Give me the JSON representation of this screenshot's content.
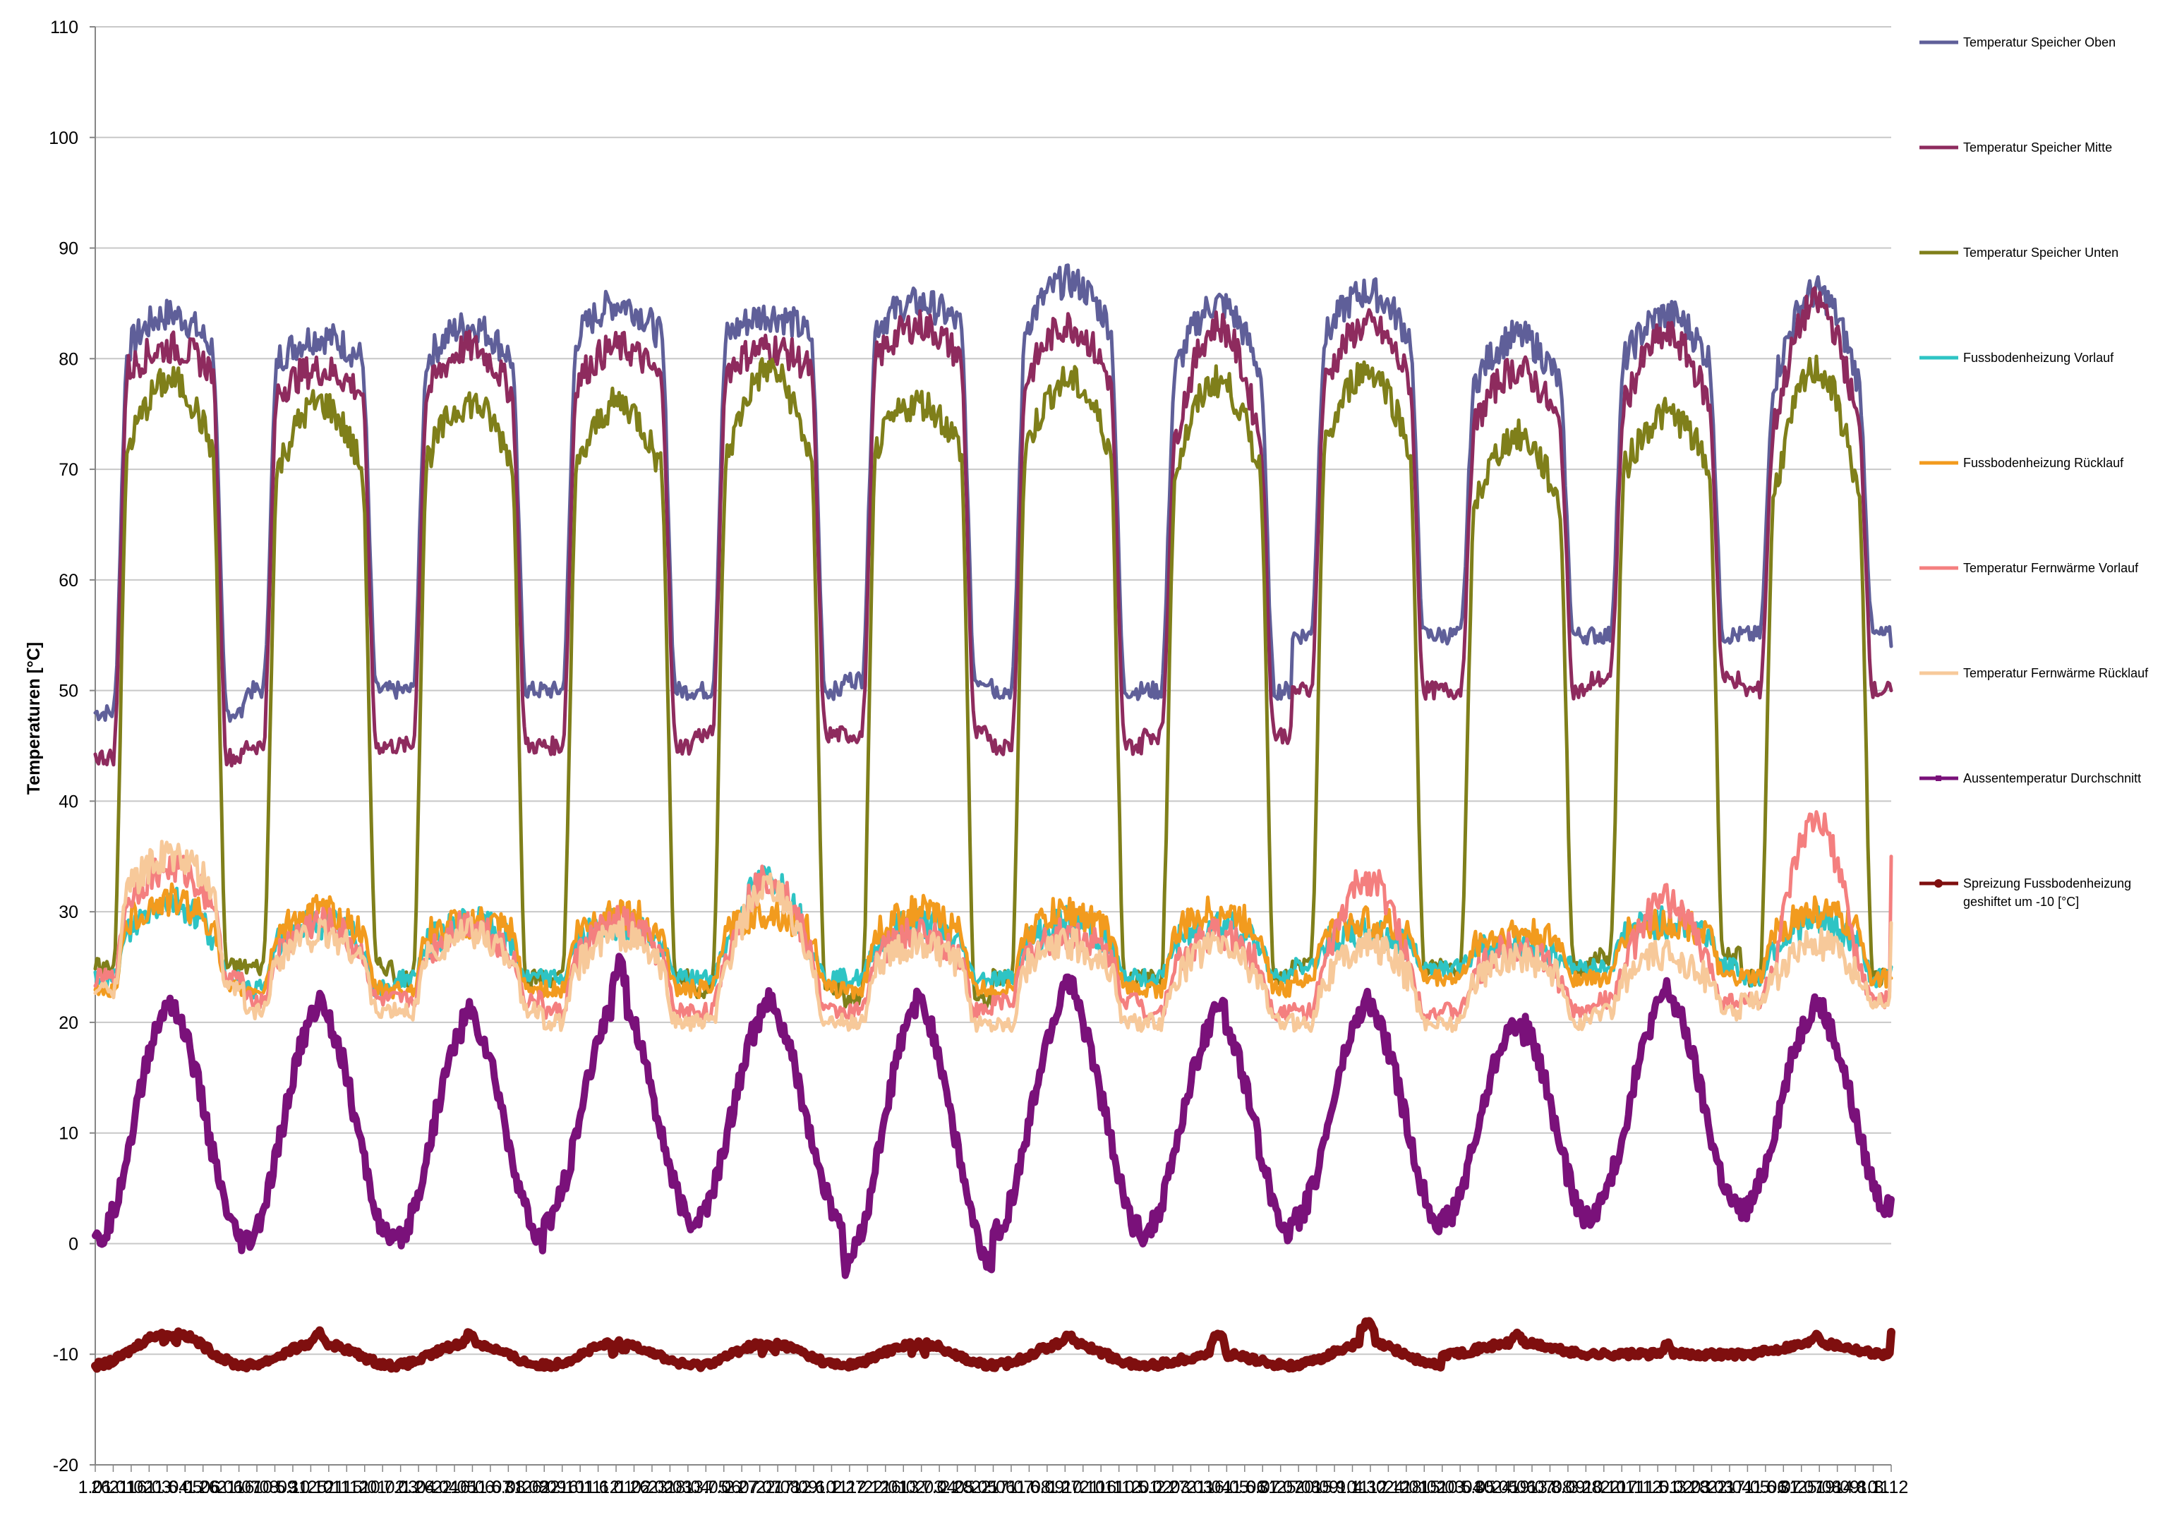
{
  "chart_data": {
    "type": "line",
    "title": "",
    "xlabel": "",
    "ylabel": "Temperaturen [°C]",
    "ylim": [
      -20,
      110
    ],
    "yticks": [
      -20,
      -10,
      0,
      10,
      20,
      30,
      40,
      50,
      60,
      70,
      80,
      90,
      100,
      110
    ],
    "grid": "horizontal",
    "legend_position": "right",
    "x_tick_labels": [
      "1.01",
      "26.01",
      "21.02",
      "16.03",
      "11.04",
      "6.05",
      "1.06",
      "26.06",
      "21.07",
      "16.08",
      "10.09",
      "5.10",
      "31.10",
      "25.11",
      "21.12",
      "15.01",
      "10.02",
      "7.03",
      "1.04",
      "26.04",
      "22.05",
      "16.06",
      "11.07",
      "6.08",
      "31.08",
      "26.09",
      "22.10",
      "16.11",
      "11.12",
      "6.01",
      "1.02",
      "26.02",
      "23.03",
      "18.04",
      "13.05",
      "7.06",
      "2.07",
      "27.07",
      "22.08",
      "17.09",
      "12.10",
      "6.11",
      "2.12",
      "27.12",
      "22.01",
      "16.02",
      "13.03",
      "7.04",
      "2.05",
      "28.05",
      "22.06",
      "17.07",
      "11.08",
      "6.09",
      "1.10",
      "27.10",
      "21.11",
      "16.12",
      "10.01",
      "5.02",
      "2.03",
      "27.03",
      "21.04",
      "16.05",
      "11.06",
      "6.07",
      "31.07",
      "25.08",
      "20.09",
      "15.10",
      "9.11",
      "4.12",
      "30.12",
      "24.01",
      "18.02",
      "15.03",
      "10.04",
      "5.05",
      "30.05",
      "24.06",
      "19.07",
      "13.08",
      "8.09",
      "3.10",
      "28.10",
      "22.11",
      "17.12",
      "11.01",
      "5.02",
      "3.03",
      "28.03",
      "22.04",
      "17.05",
      "11.06",
      "6.07",
      "31.07",
      "25.08",
      "19.09",
      "14.10",
      "8.11",
      "3.12"
    ],
    "x_period_count": 12,
    "series": [
      {
        "name": "Temperatur Speicher Oben",
        "color": "#5f5f99",
        "marker": "none",
        "cycles": [
          {
            "low": 48,
            "high": 81,
            "peak": 84
          },
          {
            "low": 50,
            "high": 80,
            "peak": 82
          },
          {
            "low": 50,
            "high": 80,
            "peak": 83
          },
          {
            "low": 50,
            "high": 82,
            "peak": 85
          },
          {
            "low": 50,
            "high": 82,
            "peak": 84
          },
          {
            "low": 51,
            "high": 83,
            "peak": 85
          },
          {
            "low": 50,
            "high": 83,
            "peak": 87
          },
          {
            "low": 50,
            "high": 79,
            "peak": 85
          },
          {
            "low": 55,
            "high": 82,
            "peak": 86
          },
          {
            "low": 55,
            "high": 78,
            "peak": 82
          },
          {
            "low": 55,
            "high": 80,
            "peak": 84
          },
          {
            "low": 55,
            "high": 78,
            "peak": 86
          }
        ],
        "end_value": 54
      },
      {
        "name": "Temperatur Speicher Mitte",
        "color": "#8e2b5e",
        "marker": "none",
        "cycles": [
          {
            "low": 44,
            "high": 79,
            "peak": 81
          },
          {
            "low": 45,
            "high": 77,
            "peak": 79
          },
          {
            "low": 45,
            "high": 77,
            "peak": 81
          },
          {
            "low": 45,
            "high": 78,
            "peak": 81
          },
          {
            "low": 46,
            "high": 79,
            "peak": 81
          },
          {
            "low": 46,
            "high": 80,
            "peak": 83
          },
          {
            "low": 45,
            "high": 78,
            "peak": 83
          },
          {
            "low": 46,
            "high": 73,
            "peak": 83
          },
          {
            "low": 50,
            "high": 78,
            "peak": 83
          },
          {
            "low": 50,
            "high": 74,
            "peak": 79
          },
          {
            "low": 51,
            "high": 76,
            "peak": 82
          },
          {
            "low": 50,
            "high": 74,
            "peak": 85
          }
        ],
        "end_value": 50
      },
      {
        "name": "Temperatur Speicher Unten",
        "color": "#7f7f1a",
        "marker": "none",
        "cycles": [
          {
            "low": 25,
            "high": 72,
            "peak": 78
          },
          {
            "low": 25,
            "high": 70,
            "peak": 76
          },
          {
            "low": 24,
            "high": 71,
            "peak": 76
          },
          {
            "low": 24,
            "high": 70,
            "peak": 76
          },
          {
            "low": 23,
            "high": 71,
            "peak": 79
          },
          {
            "low": 22,
            "high": 72,
            "peak": 76
          },
          {
            "low": 24,
            "high": 72,
            "peak": 78
          },
          {
            "low": 24,
            "high": 70,
            "peak": 78
          },
          {
            "low": 25,
            "high": 72,
            "peak": 79
          },
          {
            "low": 25,
            "high": 67,
            "peak": 73
          },
          {
            "low": 26,
            "high": 70,
            "peak": 75
          },
          {
            "low": 24,
            "high": 68,
            "peak": 79
          }
        ],
        "end_value": 25
      },
      {
        "name": "Fussbodenheizung Vorlauf",
        "color": "#2ec4c4",
        "marker": "none",
        "cycles": [
          {
            "low": 24,
            "high": 28,
            "peak": 31
          },
          {
            "low": 23,
            "high": 27,
            "peak": 29
          },
          {
            "low": 24,
            "high": 27,
            "peak": 29
          },
          {
            "low": 24,
            "high": 27,
            "peak": 29
          },
          {
            "low": 24,
            "high": 27,
            "peak": 33
          },
          {
            "low": 24,
            "high": 27,
            "peak": 29
          },
          {
            "low": 24,
            "high": 27,
            "peak": 29
          },
          {
            "low": 24,
            "high": 27,
            "peak": 29
          },
          {
            "low": 25,
            "high": 27,
            "peak": 28
          },
          {
            "low": 25,
            "high": 26,
            "peak": 27
          },
          {
            "low": 25,
            "high": 28,
            "peak": 29
          },
          {
            "low": 24,
            "high": 27,
            "peak": 29
          }
        ],
        "end_value": 25
      },
      {
        "name": "Fussbodenheizung Rücklauf",
        "color": "#f29b1e",
        "marker": "none",
        "cycles": [
          {
            "low": 23,
            "high": 29,
            "peak": 31
          },
          {
            "low": 23,
            "high": 28,
            "peak": 30
          },
          {
            "low": 23,
            "high": 28,
            "peak": 29
          },
          {
            "low": 23,
            "high": 28,
            "peak": 30
          },
          {
            "low": 23,
            "high": 28,
            "peak": 30
          },
          {
            "low": 23,
            "high": 28,
            "peak": 30
          },
          {
            "low": 23,
            "high": 28,
            "peak": 30
          },
          {
            "low": 23,
            "high": 28,
            "peak": 30
          },
          {
            "low": 24,
            "high": 28,
            "peak": 29
          },
          {
            "low": 24,
            "high": 27,
            "peak": 28
          },
          {
            "low": 24,
            "high": 28,
            "peak": 29
          },
          {
            "low": 24,
            "high": 28,
            "peak": 30
          }
        ],
        "end_value": 24
      },
      {
        "name": "Temperatur Fernwärme Vorlauf",
        "color": "#f47f7f",
        "marker": "none",
        "cycles": [
          {
            "low": 24,
            "high": 31,
            "peak": 34
          },
          {
            "low": 22,
            "high": 26,
            "peak": 29
          },
          {
            "low": 22,
            "high": 26,
            "peak": 29
          },
          {
            "low": 21,
            "high": 26,
            "peak": 29
          },
          {
            "low": 21,
            "high": 26,
            "peak": 33
          },
          {
            "low": 21,
            "high": 26,
            "peak": 28
          },
          {
            "low": 22,
            "high": 26,
            "peak": 28
          },
          {
            "low": 21,
            "high": 25,
            "peak": 28
          },
          {
            "low": 21,
            "high": 25,
            "peak": 33
          },
          {
            "low": 21,
            "high": 24,
            "peak": 27
          },
          {
            "low": 22,
            "high": 25,
            "peak": 31
          },
          {
            "low": 22,
            "high": 25,
            "peak": 38
          }
        ],
        "end_value": 35
      },
      {
        "name": "Temperatur Fernwärme Rücklauf",
        "color": "#f7c99a",
        "marker": "none",
        "cycles": [
          {
            "low": 23,
            "high": 32,
            "peak": 35
          },
          {
            "low": 21,
            "high": 26,
            "peak": 28
          },
          {
            "low": 21,
            "high": 26,
            "peak": 28
          },
          {
            "low": 20,
            "high": 25,
            "peak": 28
          },
          {
            "low": 20,
            "high": 25,
            "peak": 32
          },
          {
            "low": 20,
            "high": 25,
            "peak": 27
          },
          {
            "low": 20,
            "high": 25,
            "peak": 27
          },
          {
            "low": 20,
            "high": 24,
            "peak": 27
          },
          {
            "low": 20,
            "high": 24,
            "peak": 27
          },
          {
            "low": 20,
            "high": 24,
            "peak": 26
          },
          {
            "low": 21,
            "high": 24,
            "peak": 26
          },
          {
            "low": 22,
            "high": 24,
            "peak": 27
          }
        ],
        "end_value": 29
      },
      {
        "name": "Aussentemperatur Durchschnitt",
        "color": "#7a117a",
        "marker": "dash",
        "cycles": [
          {
            "low": 0,
            "high": 21,
            "peak": 22
          },
          {
            "low": 0,
            "high": 21,
            "peak": 22
          },
          {
            "low": 0,
            "high": 20,
            "peak": 21
          },
          {
            "low": 2,
            "high": 22,
            "peak": 25
          },
          {
            "low": 2,
            "high": 21,
            "peak": 22
          },
          {
            "low": -2,
            "high": 21,
            "peak": 22
          },
          {
            "low": 1,
            "high": 22,
            "peak": 24
          },
          {
            "low": 1,
            "high": 20,
            "peak": 22
          },
          {
            "low": 2,
            "high": 21,
            "peak": 22
          },
          {
            "low": 2,
            "high": 20,
            "peak": 20
          },
          {
            "low": 3,
            "high": 22,
            "peak": 23
          },
          {
            "low": 3,
            "high": 21,
            "peak": 22
          }
        ],
        "end_value": 4
      },
      {
        "name": "Spreizung Fussbodenheizung geshiftet um -10 [°C]",
        "name_lines": [
          "Spreizung Fussbodenheizung",
          "geshiftet um -10 [°C]"
        ],
        "color": "#7f0f0f",
        "marker": "circle",
        "cycles": [
          {
            "low": -11,
            "high": -8,
            "peak": -8
          },
          {
            "low": -11,
            "high": -9,
            "peak": -8
          },
          {
            "low": -11,
            "high": -9,
            "peak": -8
          },
          {
            "low": -11,
            "high": -9,
            "peak": -9
          },
          {
            "low": -11,
            "high": -9,
            "peak": -9
          },
          {
            "low": -11,
            "high": -9,
            "peak": -9
          },
          {
            "low": -11,
            "high": -9,
            "peak": -8
          },
          {
            "low": -11,
            "high": -10,
            "peak": -8
          },
          {
            "low": -11,
            "high": -9,
            "peak": -7
          },
          {
            "low": -10,
            "high": -9,
            "peak": -8
          },
          {
            "low": -10,
            "high": -10,
            "peak": -9
          },
          {
            "low": -10,
            "high": -9,
            "peak": -8
          }
        ],
        "end_value": -8
      }
    ]
  }
}
